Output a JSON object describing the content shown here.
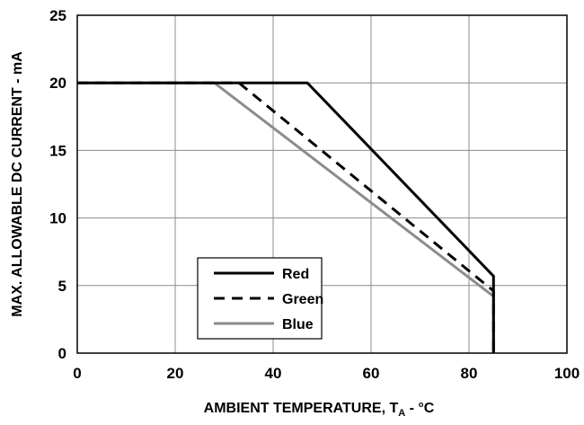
{
  "chart_data": {
    "type": "line",
    "title": "",
    "xlabel": "AMBIENT TEMPERATURE, T",
    "xlabel_subscript": "A",
    "xlabel_suffix": " - °C",
    "ylabel": "MAX. ALLOWABLE DC CURRENT - mA",
    "xlim": [
      0,
      100
    ],
    "ylim": [
      0,
      25
    ],
    "xticks": [
      0,
      20,
      40,
      60,
      80,
      100
    ],
    "yticks": [
      0,
      5,
      10,
      15,
      20,
      25
    ],
    "grid": true,
    "legend_position": "bottom-center",
    "series": [
      {
        "name": "Red",
        "color": "#000000",
        "dash": "solid",
        "x": [
          0,
          47,
          85,
          85
        ],
        "y": [
          20,
          20,
          5.7,
          0
        ]
      },
      {
        "name": "Green",
        "color": "#000000",
        "dash": "dashed",
        "x": [
          0,
          33,
          85,
          85
        ],
        "y": [
          20,
          20,
          4.6,
          0
        ]
      },
      {
        "name": "Blue",
        "color": "#8c8c8c",
        "dash": "solid",
        "x": [
          0,
          28,
          85,
          85
        ],
        "y": [
          20,
          20,
          4.2,
          0
        ]
      }
    ]
  }
}
